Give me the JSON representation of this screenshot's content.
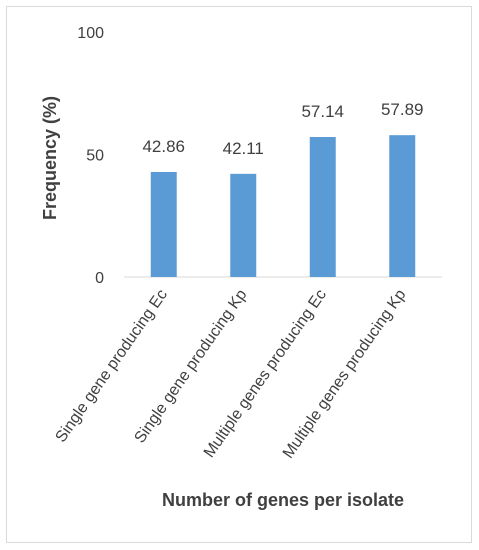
{
  "chart_data": {
    "type": "bar",
    "categories": [
      "Single gene producing Ec",
      "Single gene producing Kp",
      "Multiple genes producing Ec",
      "Multiple genes producing Kp"
    ],
    "values": [
      42.86,
      42.11,
      57.14,
      57.89
    ],
    "data_labels": [
      "42.86",
      "42.11",
      "57.14",
      "57.89"
    ],
    "ylim": [
      0,
      100
    ],
    "yticks": [
      0,
      50,
      100
    ],
    "ytick_labels": [
      "0",
      "50",
      "100"
    ],
    "xlabel": "Number of genes per isolate",
    "ylabel": "Frequency (%)",
    "grid": false,
    "legend": "none",
    "bar_color": "#5b9bd5",
    "axis_color": "#d9d9d9",
    "text_color": "#404040"
  }
}
